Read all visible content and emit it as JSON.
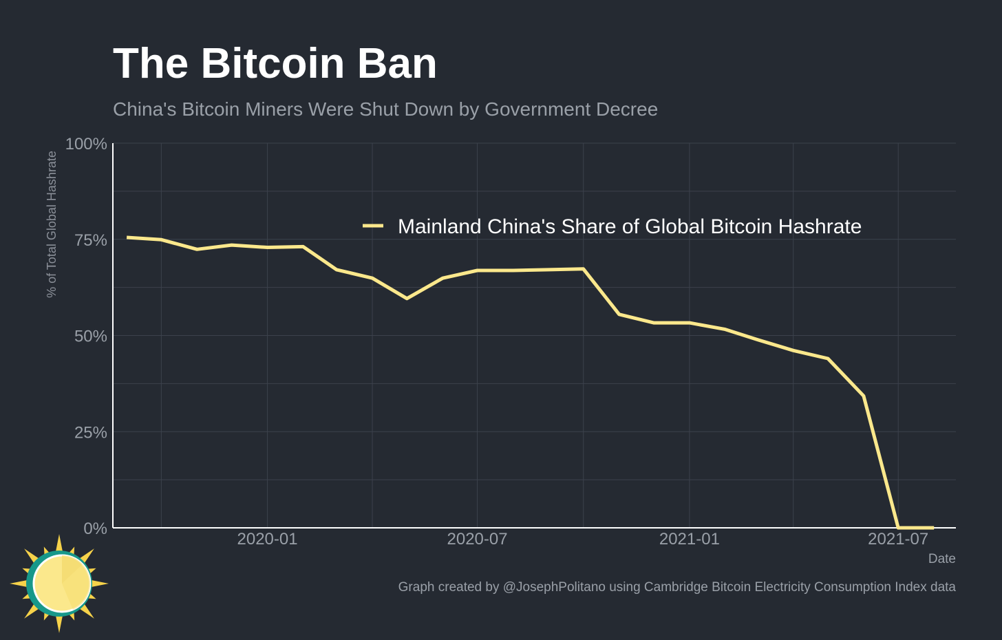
{
  "colors": {
    "background": "#252a32",
    "grid": "#3c424c",
    "axis": "#ffffff",
    "series": "#fbe88c"
  },
  "logo": {
    "icon": "sun-clock-logo-icon"
  },
  "chart_data": {
    "type": "line",
    "title": "The Bitcoin Ban",
    "subtitle": "China's Bitcoin Miners Were Shut Down by Government Decree",
    "xlabel": "Date",
    "ylabel": "% of Total Global Hashrate",
    "caption": "Graph created by @JosephPolitano using Cambridge Bitcoin Electricity Consumption Index data",
    "xlim": [
      "2019-08-20",
      "2021-08-20"
    ],
    "ylim": [
      0,
      100
    ],
    "grid": true,
    "legend_position": "top-center",
    "x_ticks": [
      {
        "date": "2020-01-01",
        "label": "2020-01"
      },
      {
        "date": "2020-07-01",
        "label": "2020-07"
      },
      {
        "date": "2021-01-01",
        "label": "2021-01"
      },
      {
        "date": "2021-07-01",
        "label": "2021-07"
      }
    ],
    "x_minor_ticks": [
      "2019-10-01",
      "2020-04-01",
      "2020-10-01",
      "2021-04-01"
    ],
    "y_ticks": [
      {
        "value": 0,
        "label": "0%"
      },
      {
        "value": 25,
        "label": "25%"
      },
      {
        "value": 50,
        "label": "50%"
      },
      {
        "value": 75,
        "label": "75%"
      },
      {
        "value": 100,
        "label": "100%"
      }
    ],
    "y_minor_ticks": [
      12.5,
      37.5,
      62.5,
      87.5
    ],
    "series": [
      {
        "name": "Mainland China's Share of Global Bitcoin Hashrate",
        "x": [
          "2019-09-01",
          "2019-10-01",
          "2019-11-01",
          "2019-12-01",
          "2020-01-01",
          "2020-02-01",
          "2020-03-01",
          "2020-04-01",
          "2020-05-01",
          "2020-06-01",
          "2020-07-01",
          "2020-08-01",
          "2020-09-01",
          "2020-10-01",
          "2020-11-01",
          "2020-12-01",
          "2021-01-01",
          "2021-02-01",
          "2021-03-01",
          "2021-04-01",
          "2021-05-01",
          "2021-06-01",
          "2021-07-01",
          "2021-08-01"
        ],
        "values": [
          75.5,
          74.9,
          72.4,
          73.5,
          72.9,
          73.1,
          67.1,
          64.9,
          59.6,
          64.9,
          66.9,
          66.9,
          67.1,
          67.3,
          55.5,
          53.3,
          53.3,
          51.6,
          48.9,
          46.1,
          44.0,
          34.3,
          0.0,
          0.0
        ]
      }
    ]
  }
}
